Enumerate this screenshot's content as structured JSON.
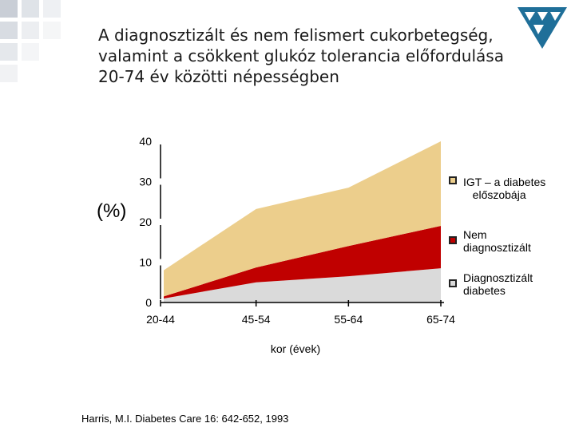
{
  "title_lines": [
    "A diagnosztizált és nem felismert cukorbetegség,",
    "valamint a csökkent glukóz tolerancia előfordulása",
    "20-74 év közötti népességben"
  ],
  "y_unit_label": "(%)",
  "source": "Harris, M.I.  Diabetes Care 16: 642-652, 1993",
  "colors": {
    "igt": "#ecce8c",
    "undiagnosed": "#c00000",
    "diagnosed": "#dadada",
    "logo": "#1f6f99"
  },
  "chart_data": {
    "type": "area",
    "stacked": true,
    "categories": [
      "20-44",
      "45-54",
      "55-64",
      "65-74"
    ],
    "xlabel": "kor (évek)",
    "ylabel": "(%)",
    "ylim": [
      0,
      40
    ],
    "yticks": [
      0,
      10,
      20,
      30,
      40
    ],
    "grid": false,
    "legend_position": "right",
    "series": [
      {
        "name": "Diagnosztizált\ndiabetes",
        "color": "#dadada",
        "values": [
          1.0,
          5.0,
          6.5,
          8.5
        ]
      },
      {
        "name": "Nem\ndiagnosztizált",
        "color": "#c00000",
        "values": [
          0.5,
          3.7,
          7.5,
          10.5
        ]
      },
      {
        "name": "IGT – a diabetes\n   előszobája",
        "color": "#ecce8c",
        "values": [
          6.5,
          14.5,
          14.5,
          21.0
        ]
      }
    ],
    "legend_order": [
      2,
      1,
      0
    ]
  }
}
